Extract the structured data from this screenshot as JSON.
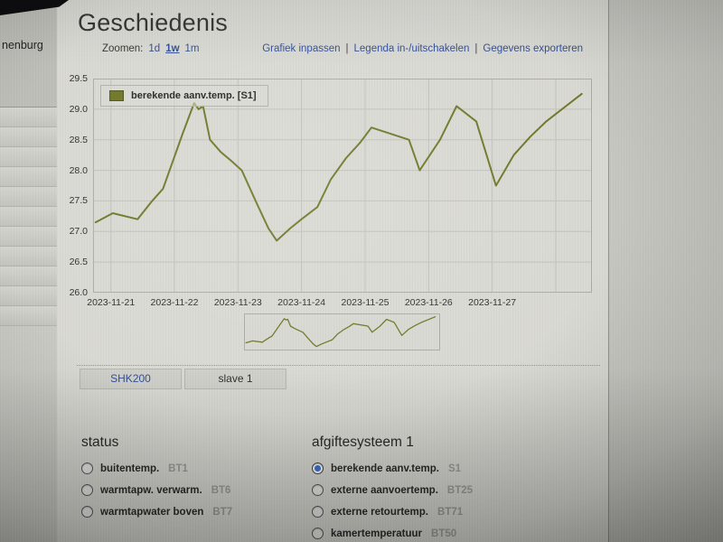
{
  "page_title": "Geschiedenis",
  "sidebar": {
    "selected_item_label": "nenburg",
    "collapsed_item_count": 11
  },
  "toolbar": {
    "zoom_label": "Zoomen:",
    "zoom_options": [
      {
        "label": "1d",
        "active": false
      },
      {
        "label": "1w",
        "active": true
      },
      {
        "label": "1m",
        "active": false
      }
    ],
    "links": [
      {
        "label": "Grafiek inpassen"
      },
      {
        "label": "Legenda in-/uitschakelen"
      },
      {
        "label": "Gegevens exporteren"
      }
    ],
    "link_separator": "|"
  },
  "chart_data": {
    "type": "line",
    "title": "",
    "xlabel": "",
    "ylabel": "",
    "grid": true,
    "legend_position": "top-left-inside",
    "legend": [
      {
        "label": "berekende aanv.temp. [S1]",
        "color": "#6d7524"
      }
    ],
    "ylim": [
      26.0,
      29.5
    ],
    "y_ticks": [
      26.0,
      26.5,
      27.0,
      27.5,
      28.0,
      28.5,
      29.0,
      29.5
    ],
    "y_tick_labels": [
      "26.0",
      "26.5",
      "27.0",
      "27.5",
      "28.0",
      "28.5",
      "29.0",
      "29.5"
    ],
    "x_unit": "days offset from 2023-11-21 00:00",
    "x_range": [
      -0.28,
      7.57
    ],
    "x_gridline_days": [
      0,
      1,
      2,
      3,
      4,
      5,
      6,
      7
    ],
    "x_tick_labels": [
      "2023-11-21",
      "2023-11-22",
      "2023-11-23",
      "2023-11-24",
      "2023-11-25",
      "2023-11-26",
      "2023-11-27"
    ],
    "series": [
      {
        "name": "berekende aanv.temp. [S1]",
        "unit": "°C",
        "color": "#6d7524",
        "points": [
          [
            -0.24,
            27.15
          ],
          [
            0.03,
            27.3
          ],
          [
            0.42,
            27.2
          ],
          [
            0.65,
            27.5
          ],
          [
            0.82,
            27.7
          ],
          [
            1.13,
            28.6
          ],
          [
            1.31,
            29.1
          ],
          [
            1.38,
            29.0
          ],
          [
            1.45,
            29.05
          ],
          [
            1.56,
            28.5
          ],
          [
            1.73,
            28.3
          ],
          [
            1.9,
            28.15
          ],
          [
            2.06,
            28.0
          ],
          [
            2.3,
            27.45
          ],
          [
            2.48,
            27.05
          ],
          [
            2.61,
            26.85
          ],
          [
            2.82,
            27.05
          ],
          [
            3.0,
            27.2
          ],
          [
            3.25,
            27.4
          ],
          [
            3.46,
            27.85
          ],
          [
            3.7,
            28.2
          ],
          [
            3.92,
            28.45
          ],
          [
            4.1,
            28.7
          ],
          [
            4.69,
            28.5
          ],
          [
            4.86,
            28.0
          ],
          [
            5.18,
            28.5
          ],
          [
            5.44,
            29.05
          ],
          [
            5.75,
            28.8
          ],
          [
            6.06,
            27.75
          ],
          [
            6.34,
            28.25
          ],
          [
            6.6,
            28.55
          ],
          [
            6.85,
            28.8
          ],
          [
            7.41,
            29.25
          ]
        ]
      }
    ],
    "navigator": {
      "present": true,
      "shows": "same series over full visible range"
    }
  },
  "tabs": [
    {
      "label": "SHK200",
      "text_color": "#2e4b96"
    },
    {
      "label": "slave 1",
      "text_color": "#2a2a28"
    }
  ],
  "sections": [
    {
      "title": "status",
      "options": [
        {
          "label": "buitentemp.",
          "code": "BT1",
          "selected": false
        },
        {
          "label": "warmtapw. verwarm.",
          "code": "BT6",
          "selected": false
        },
        {
          "label": "warmtapwater boven",
          "code": "BT7",
          "selected": false
        }
      ]
    },
    {
      "title": "afgiftesysteem 1",
      "options": [
        {
          "label": "berekende aanv.temp.",
          "code": "S1",
          "selected": true
        },
        {
          "label": "externe aanvoertemp.",
          "code": "BT25",
          "selected": false
        },
        {
          "label": "externe retourtemp.",
          "code": "BT71",
          "selected": false
        },
        {
          "label": "kamertemperatuur",
          "code": "BT50",
          "selected": false
        }
      ]
    }
  ],
  "colors": {
    "link_blue": "#2e4b96",
    "radio_selected_blue": "#3a6fce",
    "series_olive": "#6d7524",
    "panel_bg": "#d9d9d3",
    "grid_line": "#c1c1bb"
  }
}
